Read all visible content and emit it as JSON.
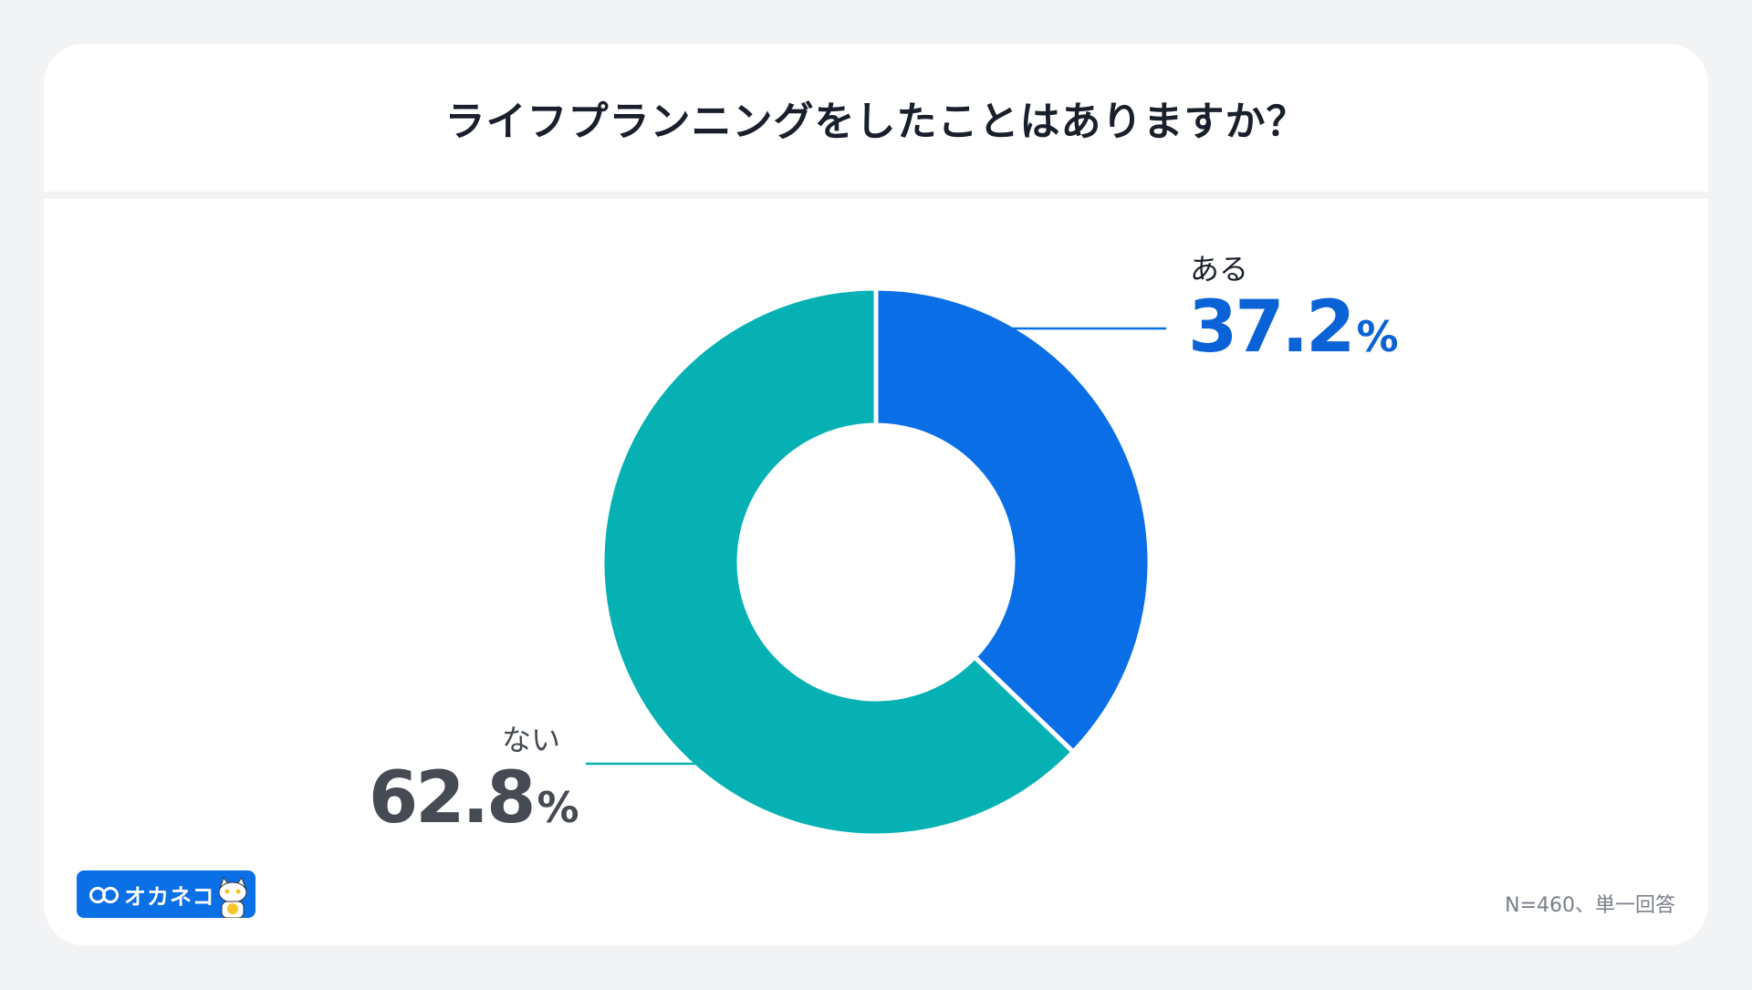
{
  "title": "ライフプランニングをしたことはありますか？",
  "footnote": "N=460、単一回答",
  "logo": {
    "text": "オカネコ",
    "icon": "cat-mascot-icon"
  },
  "chart_data": {
    "type": "pie",
    "donut": true,
    "title": "ライフプランニングをしたことはありますか？",
    "slices": [
      {
        "label": "ある",
        "value": 37.2,
        "display": "37.2",
        "unit": "%",
        "color": "#0a6fe6",
        "text_color": "#0a63d6"
      },
      {
        "label": "ない",
        "value": 62.8,
        "display": "62.8",
        "unit": "%",
        "color": "#06b1b4",
        "text_color": "#454a53"
      }
    ]
  }
}
